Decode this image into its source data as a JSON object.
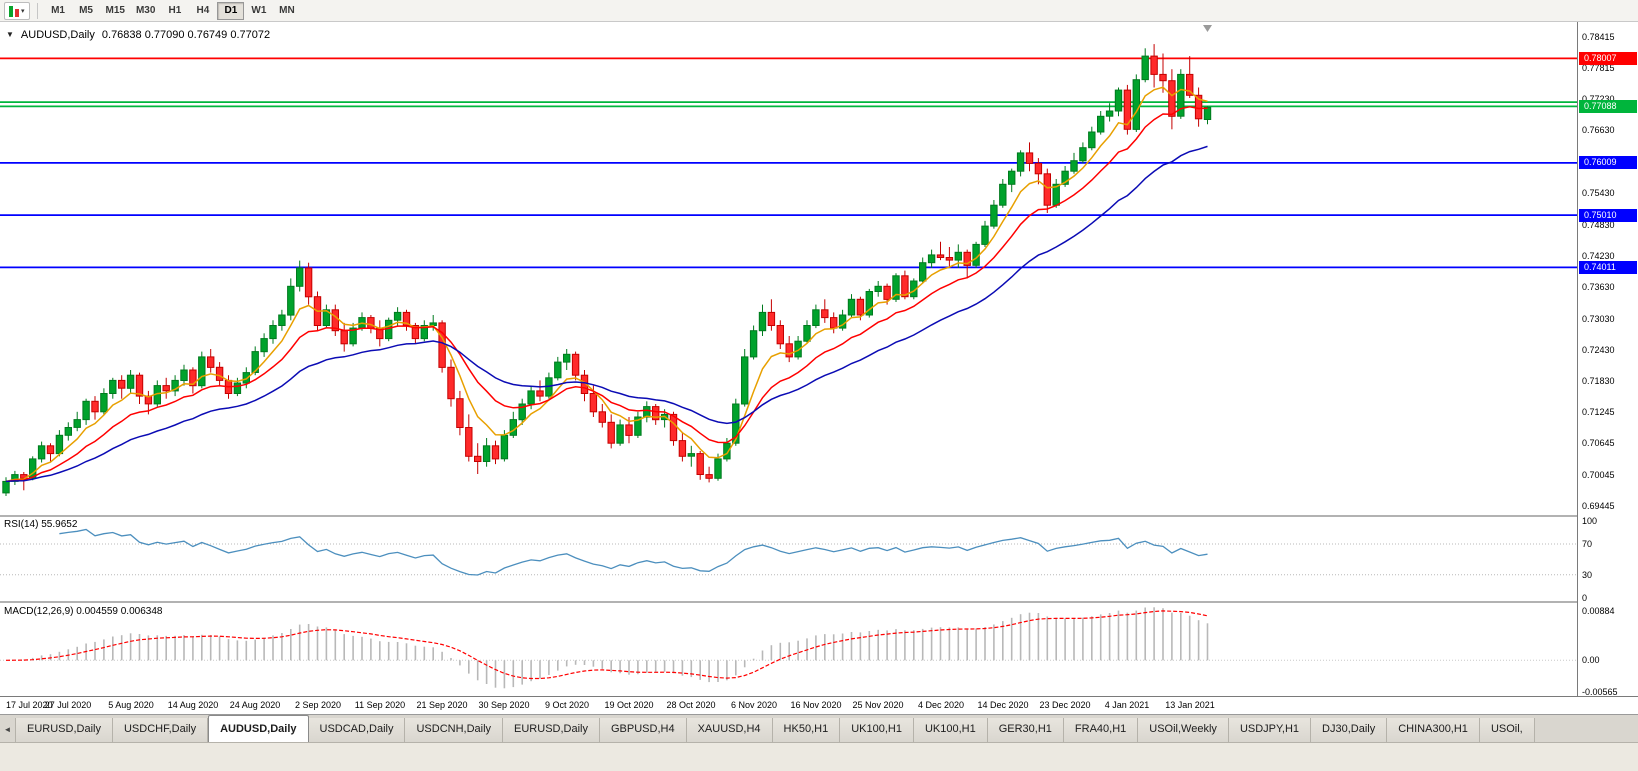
{
  "icons": {
    "candlestick_chart": "mini-candles",
    "dropdown_arrow": "▾",
    "one_click_toggle": "▼",
    "tab_scroll_left": "◄",
    "shift_marker": "▽"
  },
  "toolbar": {
    "timeframes": [
      "M1",
      "M5",
      "M15",
      "M30",
      "H1",
      "H4",
      "D1",
      "W1",
      "MN"
    ],
    "active_timeframe": "D1"
  },
  "chart_header": {
    "symbol": "AUDUSD,Daily",
    "ohlc": "0.76838 0.77090 0.76749 0.77072"
  },
  "tabs": {
    "items": [
      "EURUSD,Daily",
      "USDCHF,Daily",
      "AUDUSD,Daily",
      "USDCAD,Daily",
      "USDCNH,Daily",
      "EURUSD,Daily",
      "GBPUSD,H4",
      "XAUUSD,H4",
      "HK50,H1",
      "UK100,H1",
      "UK100,H1",
      "GER30,H1",
      "FRA40,H1",
      "USOil,Weekly",
      "USDJPY,H1",
      "DJ30,Daily",
      "CHINA300,H1",
      "USOil,"
    ],
    "active_index": 2
  },
  "chart_data": {
    "type": "candlestick",
    "symbol": "AUDUSD",
    "timeframe": "Daily",
    "y_range": [
      0.69277,
      0.78664
    ],
    "x_labels": [
      "17 Jul 2020",
      "27 Jul 2020",
      "5 Aug 2020",
      "14 Aug 2020",
      "24 Aug 2020",
      "2 Sep 2020",
      "11 Sep 2020",
      "21 Sep 2020",
      "30 Sep 2020",
      "9 Oct 2020",
      "19 Oct 2020",
      "28 Oct 2020",
      "6 Nov 2020",
      "16 Nov 2020",
      "25 Nov 2020",
      "4 Dec 2020",
      "14 Dec 2020",
      "23 Dec 2020",
      "4 Jan 2021",
      "13 Jan 2021"
    ],
    "x_label_interval": 7,
    "price_axis_labels": [
      "0.78415",
      "0.77815",
      "0.77230",
      "0.76630",
      "0.75430",
      "0.74830",
      "0.74230",
      "0.73630",
      "0.73030",
      "0.72430",
      "0.71830",
      "0.71245",
      "0.70645",
      "0.70045",
      "0.69445"
    ],
    "horizontal_lines": [
      {
        "price": 0.78007,
        "color": "#FF0000",
        "badge": "0.78007"
      },
      {
        "price": 0.7717,
        "color": "#00B53C",
        "badge": ""
      },
      {
        "price": 0.77088,
        "color": "#00B53C",
        "badge": "0.77088"
      },
      {
        "price": 0.76009,
        "color": "#0000FF",
        "badge": "0.76009"
      },
      {
        "price": 0.7501,
        "color": "#0000FF",
        "badge": "0.75010"
      },
      {
        "price": 0.74011,
        "color": "#0000FF",
        "badge": "0.74011"
      }
    ],
    "moving_averages": [
      {
        "period": 6,
        "color": "#E8A000"
      },
      {
        "period": 13,
        "color": "#FF0000"
      },
      {
        "period": 28,
        "color": "#0B0BB4"
      }
    ],
    "colors": {
      "up": "#00A22C",
      "up_stroke": "#007A1E",
      "down": "#FF2A2A",
      "down_stroke": "#C40000"
    },
    "candles_ohlc": [
      [
        0.697,
        0.7,
        0.6964,
        0.6992
      ],
      [
        0.6992,
        0.7012,
        0.6985,
        0.7005
      ],
      [
        0.7005,
        0.701,
        0.6975,
        0.6998
      ],
      [
        0.6998,
        0.704,
        0.6994,
        0.7035
      ],
      [
        0.7035,
        0.7068,
        0.7028,
        0.706
      ],
      [
        0.706,
        0.7065,
        0.703,
        0.7045
      ],
      [
        0.7045,
        0.709,
        0.704,
        0.708
      ],
      [
        0.708,
        0.7105,
        0.707,
        0.7095
      ],
      [
        0.7095,
        0.7125,
        0.7088,
        0.711
      ],
      [
        0.711,
        0.715,
        0.71,
        0.7145
      ],
      [
        0.7145,
        0.7155,
        0.711,
        0.7125
      ],
      [
        0.7125,
        0.717,
        0.7118,
        0.716
      ],
      [
        0.716,
        0.719,
        0.715,
        0.7185
      ],
      [
        0.7185,
        0.7195,
        0.715,
        0.717
      ],
      [
        0.717,
        0.7205,
        0.716,
        0.7195
      ],
      [
        0.7195,
        0.72,
        0.714,
        0.7155
      ],
      [
        0.7155,
        0.7165,
        0.712,
        0.714
      ],
      [
        0.714,
        0.7185,
        0.7135,
        0.7175
      ],
      [
        0.7175,
        0.719,
        0.715,
        0.7165
      ],
      [
        0.7165,
        0.7195,
        0.7155,
        0.7185
      ],
      [
        0.7185,
        0.7215,
        0.7175,
        0.7205
      ],
      [
        0.7205,
        0.721,
        0.716,
        0.7175
      ],
      [
        0.7175,
        0.724,
        0.717,
        0.723
      ],
      [
        0.723,
        0.7245,
        0.72,
        0.721
      ],
      [
        0.721,
        0.722,
        0.7175,
        0.7185
      ],
      [
        0.7185,
        0.7195,
        0.715,
        0.716
      ],
      [
        0.716,
        0.719,
        0.7155,
        0.718
      ],
      [
        0.718,
        0.721,
        0.717,
        0.72
      ],
      [
        0.72,
        0.725,
        0.7195,
        0.724
      ],
      [
        0.724,
        0.7275,
        0.723,
        0.7265
      ],
      [
        0.7265,
        0.73,
        0.7255,
        0.729
      ],
      [
        0.729,
        0.732,
        0.728,
        0.731
      ],
      [
        0.731,
        0.738,
        0.73,
        0.7365
      ],
      [
        0.7365,
        0.7414,
        0.7355,
        0.74
      ],
      [
        0.74,
        0.741,
        0.733,
        0.7345
      ],
      [
        0.7345,
        0.7355,
        0.728,
        0.729
      ],
      [
        0.729,
        0.733,
        0.7285,
        0.732
      ],
      [
        0.732,
        0.733,
        0.727,
        0.728
      ],
      [
        0.728,
        0.7295,
        0.724,
        0.7255
      ],
      [
        0.7255,
        0.7295,
        0.725,
        0.7285
      ],
      [
        0.7285,
        0.7315,
        0.728,
        0.7305
      ],
      [
        0.7305,
        0.731,
        0.7275,
        0.7285
      ],
      [
        0.7285,
        0.73,
        0.725,
        0.7265
      ],
      [
        0.7265,
        0.7305,
        0.726,
        0.73
      ],
      [
        0.73,
        0.7325,
        0.729,
        0.7315
      ],
      [
        0.7315,
        0.732,
        0.728,
        0.729
      ],
      [
        0.729,
        0.7295,
        0.7255,
        0.7265
      ],
      [
        0.7265,
        0.73,
        0.726,
        0.729
      ],
      [
        0.729,
        0.731,
        0.728,
        0.7295
      ],
      [
        0.7295,
        0.73,
        0.72,
        0.721
      ],
      [
        0.721,
        0.7225,
        0.7135,
        0.715
      ],
      [
        0.715,
        0.7165,
        0.708,
        0.7095
      ],
      [
        0.7095,
        0.712,
        0.703,
        0.704
      ],
      [
        0.704,
        0.7065,
        0.7006,
        0.703
      ],
      [
        0.703,
        0.7075,
        0.702,
        0.706
      ],
      [
        0.706,
        0.707,
        0.7025,
        0.7035
      ],
      [
        0.7035,
        0.709,
        0.703,
        0.708
      ],
      [
        0.708,
        0.7125,
        0.7075,
        0.711
      ],
      [
        0.711,
        0.715,
        0.71,
        0.714
      ],
      [
        0.714,
        0.7175,
        0.713,
        0.7165
      ],
      [
        0.7165,
        0.7185,
        0.7145,
        0.7155
      ],
      [
        0.7155,
        0.72,
        0.715,
        0.719
      ],
      [
        0.719,
        0.723,
        0.7185,
        0.722
      ],
      [
        0.722,
        0.7245,
        0.7205,
        0.7235
      ],
      [
        0.7235,
        0.724,
        0.7185,
        0.7195
      ],
      [
        0.7195,
        0.7205,
        0.7145,
        0.716
      ],
      [
        0.716,
        0.7175,
        0.7115,
        0.7125
      ],
      [
        0.7125,
        0.714,
        0.7095,
        0.7105
      ],
      [
        0.7105,
        0.712,
        0.7055,
        0.7065
      ],
      [
        0.7065,
        0.711,
        0.706,
        0.71
      ],
      [
        0.71,
        0.7115,
        0.7065,
        0.708
      ],
      [
        0.708,
        0.7125,
        0.7075,
        0.7115
      ],
      [
        0.7115,
        0.7145,
        0.7105,
        0.7135
      ],
      [
        0.7135,
        0.714,
        0.71,
        0.711
      ],
      [
        0.711,
        0.713,
        0.7095,
        0.712
      ],
      [
        0.712,
        0.7125,
        0.706,
        0.707
      ],
      [
        0.707,
        0.7085,
        0.703,
        0.704
      ],
      [
        0.704,
        0.706,
        0.702,
        0.7045
      ],
      [
        0.7045,
        0.705,
        0.6995,
        0.7005
      ],
      [
        0.7005,
        0.702,
        0.699,
        0.6998
      ],
      [
        0.6998,
        0.7045,
        0.6993,
        0.7035
      ],
      [
        0.7035,
        0.7075,
        0.703,
        0.7065
      ],
      [
        0.7065,
        0.715,
        0.706,
        0.714
      ],
      [
        0.714,
        0.7245,
        0.7135,
        0.723
      ],
      [
        0.723,
        0.729,
        0.7225,
        0.728
      ],
      [
        0.728,
        0.733,
        0.727,
        0.7315
      ],
      [
        0.7315,
        0.734,
        0.728,
        0.729
      ],
      [
        0.729,
        0.73,
        0.7245,
        0.7255
      ],
      [
        0.7255,
        0.727,
        0.722,
        0.723
      ],
      [
        0.723,
        0.727,
        0.7225,
        0.726
      ],
      [
        0.726,
        0.73,
        0.7255,
        0.729
      ],
      [
        0.729,
        0.733,
        0.7285,
        0.732
      ],
      [
        0.732,
        0.734,
        0.7295,
        0.7305
      ],
      [
        0.7305,
        0.7315,
        0.7275,
        0.7285
      ],
      [
        0.7285,
        0.732,
        0.728,
        0.731
      ],
      [
        0.731,
        0.735,
        0.7305,
        0.734
      ],
      [
        0.734,
        0.7345,
        0.73,
        0.731
      ],
      [
        0.731,
        0.736,
        0.7305,
        0.7355
      ],
      [
        0.7355,
        0.7375,
        0.7345,
        0.7365
      ],
      [
        0.7365,
        0.737,
        0.733,
        0.734
      ],
      [
        0.734,
        0.739,
        0.7335,
        0.7385
      ],
      [
        0.7385,
        0.7395,
        0.734,
        0.7345
      ],
      [
        0.7345,
        0.738,
        0.734,
        0.7375
      ],
      [
        0.7375,
        0.742,
        0.737,
        0.741
      ],
      [
        0.741,
        0.7435,
        0.74,
        0.7425
      ],
      [
        0.7425,
        0.745,
        0.7415,
        0.742
      ],
      [
        0.742,
        0.744,
        0.74,
        0.7415
      ],
      [
        0.7415,
        0.7445,
        0.74,
        0.743
      ],
      [
        0.743,
        0.7435,
        0.738,
        0.7405
      ],
      [
        0.7405,
        0.745,
        0.74,
        0.7445
      ],
      [
        0.7445,
        0.749,
        0.744,
        0.748
      ],
      [
        0.748,
        0.753,
        0.7475,
        0.752
      ],
      [
        0.752,
        0.757,
        0.7515,
        0.756
      ],
      [
        0.756,
        0.759,
        0.7545,
        0.7585
      ],
      [
        0.7585,
        0.7625,
        0.7575,
        0.762
      ],
      [
        0.762,
        0.764,
        0.7585,
        0.76
      ],
      [
        0.76,
        0.761,
        0.756,
        0.758
      ],
      [
        0.758,
        0.759,
        0.7505,
        0.752
      ],
      [
        0.752,
        0.757,
        0.7515,
        0.756
      ],
      [
        0.756,
        0.7595,
        0.7555,
        0.7585
      ],
      [
        0.7585,
        0.762,
        0.758,
        0.7605
      ],
      [
        0.7605,
        0.764,
        0.76,
        0.763
      ],
      [
        0.763,
        0.767,
        0.7625,
        0.766
      ],
      [
        0.766,
        0.77,
        0.7655,
        0.769
      ],
      [
        0.769,
        0.7715,
        0.768,
        0.77
      ],
      [
        0.77,
        0.7745,
        0.769,
        0.774
      ],
      [
        0.774,
        0.775,
        0.7655,
        0.7665
      ],
      [
        0.7665,
        0.777,
        0.766,
        0.776
      ],
      [
        0.776,
        0.782,
        0.7755,
        0.7805
      ],
      [
        0.7805,
        0.7828,
        0.7745,
        0.777
      ],
      [
        0.777,
        0.781,
        0.7735,
        0.7758
      ],
      [
        0.7758,
        0.778,
        0.7665,
        0.769
      ],
      [
        0.769,
        0.778,
        0.7685,
        0.777
      ],
      [
        0.777,
        0.7805,
        0.7725,
        0.773
      ],
      [
        0.773,
        0.7745,
        0.767,
        0.7685
      ],
      [
        0.76838,
        0.7709,
        0.76749,
        0.77072
      ]
    ],
    "rsi_panel": {
      "label": "RSI(14) 55.9652",
      "period": 14,
      "axis_labels": [
        "100",
        "70",
        "30",
        "0"
      ],
      "level_lines": [
        70,
        30
      ],
      "y_range": [
        -4,
        105
      ],
      "color": "#4C8FBE"
    },
    "macd_panel": {
      "label": "MACD(12,26,9) 0.004559 0.006348",
      "fast": 12,
      "slow": 26,
      "signal": 9,
      "axis_labels": [
        "0.00884",
        "0.00",
        "-0.00565"
      ],
      "y_range": [
        -0.00638,
        0.01008
      ],
      "histogram_color": "#B8B8B8",
      "signal_color": "#FF0000"
    }
  }
}
